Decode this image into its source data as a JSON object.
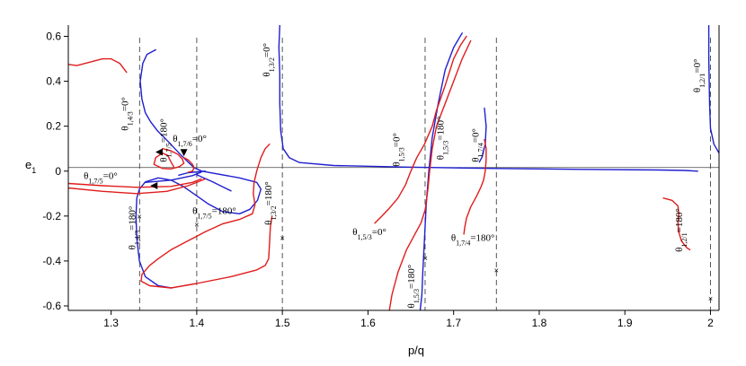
{
  "chart_data": {
    "type": "line",
    "xlabel": "p/q",
    "ylabel": "e",
    "ylabel_sub": "1",
    "xlim": [
      1.25,
      2.01
    ],
    "ylim": [
      -0.62,
      0.65
    ],
    "x_ticks": [
      "1.3",
      "1.4",
      "1.5",
      "1.6",
      "1.7",
      "1.8",
      "1.9",
      "2"
    ],
    "x_tick_values": [
      1.3,
      1.4,
      1.5,
      1.6,
      1.7,
      1.8,
      1.9,
      2.0
    ],
    "y_ticks": [
      "-0.6",
      "-0.4",
      "-0.2",
      "0",
      "0.2",
      "0.4",
      "0.6"
    ],
    "y_tick_values": [
      -0.6,
      -0.4,
      -0.2,
      0,
      0.2,
      0.4,
      0.6
    ],
    "reference_lines_x": [
      1.3333,
      1.4,
      1.5,
      1.6667,
      1.75,
      2.0
    ],
    "colors": {
      "blue": "#1f1fd0",
      "red": "#e01c1c",
      "ref": "#555555"
    },
    "series": [
      {
        "color": "blue",
        "points": [
          [
            1.352,
            0.54
          ],
          [
            1.342,
            0.52
          ],
          [
            1.337,
            0.48
          ],
          [
            1.334,
            0.4
          ],
          [
            1.336,
            0.32
          ],
          [
            1.34,
            0.26
          ],
          [
            1.346,
            0.22
          ],
          [
            1.354,
            0.18
          ],
          [
            1.362,
            0.15
          ],
          [
            1.372,
            0.11
          ],
          [
            1.382,
            0.07
          ],
          [
            1.39,
            0.04
          ],
          [
            1.397,
            0.015
          ],
          [
            1.406,
            0.0
          ],
          [
            1.45,
            -0.03
          ],
          [
            1.47,
            -0.05
          ],
          [
            1.475,
            -0.08
          ],
          [
            1.471,
            -0.13
          ],
          [
            1.462,
            -0.17
          ],
          [
            1.45,
            -0.19
          ],
          [
            1.43,
            -0.18
          ],
          [
            1.413,
            -0.145
          ],
          [
            1.4,
            -0.11
          ],
          [
            1.385,
            -0.07
          ],
          [
            1.37,
            -0.04
          ],
          [
            1.355,
            -0.03
          ],
          [
            1.34,
            -0.048
          ],
          [
            1.333,
            -0.08
          ],
          [
            1.33,
            -0.12
          ],
          [
            1.329,
            -0.2
          ],
          [
            1.33,
            -0.3
          ],
          [
            1.333,
            -0.4
          ],
          [
            1.34,
            -0.47
          ],
          [
            1.355,
            -0.51
          ],
          [
            1.37,
            -0.52
          ]
        ]
      },
      {
        "color": "blue",
        "points": [
          [
            1.34,
            -0.05
          ],
          [
            1.37,
            -0.04
          ],
          [
            1.395,
            -0.02
          ],
          [
            1.405,
            -0.005
          ]
        ]
      },
      {
        "color": "blue",
        "points": [
          [
            1.379,
            -0.018
          ],
          [
            1.39,
            -0.007
          ],
          [
            1.41,
            0.0
          ]
        ]
      },
      {
        "color": "blue",
        "points": [
          [
            1.4,
            -0.016
          ],
          [
            1.408,
            -0.03
          ],
          [
            1.417,
            -0.045
          ],
          [
            1.425,
            -0.06
          ],
          [
            1.433,
            -0.075
          ],
          [
            1.44,
            -0.088
          ]
        ]
      },
      {
        "color": "blue",
        "points": [
          [
            1.497,
            0.65
          ],
          [
            1.496,
            0.55
          ],
          [
            1.497,
            0.43
          ],
          [
            1.497,
            0.3
          ],
          [
            1.498,
            0.18
          ],
          [
            1.501,
            0.1
          ],
          [
            1.508,
            0.06
          ],
          [
            1.52,
            0.038
          ],
          [
            1.56,
            0.025
          ],
          [
            1.64,
            0.018
          ],
          [
            1.75,
            0.012
          ],
          [
            1.85,
            0.008
          ],
          [
            1.94,
            0.005
          ],
          [
            1.97,
            0.003
          ],
          [
            1.985,
            0.0
          ]
        ]
      },
      {
        "color": "blue",
        "points": [
          [
            1.998,
            0.65
          ],
          [
            1.998,
            0.5
          ],
          [
            1.999,
            0.3
          ],
          [
            2.0,
            0.19
          ],
          [
            2.004,
            0.12
          ],
          [
            2.01,
            0.08
          ]
        ]
      },
      {
        "color": "blue",
        "points": [
          [
            1.661,
            -0.62
          ],
          [
            1.663,
            -0.55
          ],
          [
            1.664,
            -0.45
          ],
          [
            1.666,
            -0.3
          ],
          [
            1.668,
            -0.15
          ],
          [
            1.671,
            0.0
          ],
          [
            1.675,
            0.15
          ],
          [
            1.682,
            0.3
          ],
          [
            1.69,
            0.45
          ],
          [
            1.7,
            0.55
          ],
          [
            1.71,
            0.615
          ]
        ]
      },
      {
        "color": "blue",
        "points": [
          [
            1.736,
            0.28
          ],
          [
            1.738,
            0.2
          ],
          [
            1.737,
            0.12
          ],
          [
            1.733,
            0.06
          ],
          [
            1.73,
            0.04
          ]
        ]
      },
      {
        "color": "red",
        "points": [
          [
            1.25,
            0.475
          ],
          [
            1.26,
            0.47
          ],
          [
            1.275,
            0.485
          ],
          [
            1.29,
            0.5
          ],
          [
            1.3,
            0.5
          ],
          [
            1.31,
            0.48
          ],
          [
            1.318,
            0.44
          ]
        ]
      },
      {
        "color": "red",
        "points": [
          [
            1.25,
            -0.055
          ],
          [
            1.29,
            -0.065
          ],
          [
            1.33,
            -0.072
          ],
          [
            1.37,
            -0.068
          ],
          [
            1.395,
            -0.05
          ],
          [
            1.405,
            -0.035
          ]
        ]
      },
      {
        "color": "red",
        "points": [
          [
            1.25,
            -0.075
          ],
          [
            1.29,
            -0.09
          ],
          [
            1.33,
            -0.1
          ],
          [
            1.365,
            -0.09
          ],
          [
            1.39,
            -0.065
          ],
          [
            1.41,
            -0.035
          ]
        ]
      },
      {
        "color": "red",
        "points": [
          [
            1.36,
            0.1
          ],
          [
            1.37,
            0.09
          ],
          [
            1.378,
            0.075
          ],
          [
            1.383,
            0.055
          ],
          [
            1.385,
            0.035
          ],
          [
            1.38,
            0.02
          ],
          [
            1.37,
            0.01
          ],
          [
            1.36,
            0.012
          ],
          [
            1.35,
            0.03
          ],
          [
            1.352,
            0.06
          ],
          [
            1.36,
            0.08
          ],
          [
            1.366,
            0.07
          ],
          [
            1.37,
            0.04
          ],
          [
            1.373,
            0.02
          ]
        ]
      },
      {
        "color": "red",
        "points": [
          [
            1.385,
            0.06
          ],
          [
            1.39,
            0.05
          ],
          [
            1.395,
            0.03
          ],
          [
            1.397,
            0.015
          ],
          [
            1.395,
            0.0
          ],
          [
            1.39,
            -0.005
          ]
        ]
      },
      {
        "color": "red",
        "points": [
          [
            1.485,
            0.12
          ],
          [
            1.48,
            0.1
          ],
          [
            1.475,
            0.06
          ],
          [
            1.47,
            0.0
          ],
          [
            1.467,
            -0.05
          ],
          [
            1.466,
            -0.1
          ],
          [
            1.468,
            -0.15
          ],
          [
            1.465,
            -0.19
          ],
          [
            1.45,
            -0.215
          ],
          [
            1.43,
            -0.235
          ],
          [
            1.41,
            -0.27
          ],
          [
            1.39,
            -0.31
          ],
          [
            1.37,
            -0.35
          ],
          [
            1.355,
            -0.39
          ],
          [
            1.345,
            -0.42
          ],
          [
            1.336,
            -0.46
          ],
          [
            1.335,
            -0.49
          ],
          [
            1.345,
            -0.51
          ],
          [
            1.37,
            -0.52
          ],
          [
            1.4,
            -0.5
          ],
          [
            1.44,
            -0.47
          ],
          [
            1.47,
            -0.44
          ],
          [
            1.48,
            -0.42
          ],
          [
            1.484,
            -0.39
          ],
          [
            1.485,
            -0.32
          ],
          [
            1.486,
            -0.25
          ],
          [
            1.488,
            -0.2
          ]
        ]
      },
      {
        "color": "red",
        "points": [
          [
            1.608,
            -0.232
          ],
          [
            1.615,
            -0.205
          ],
          [
            1.625,
            -0.165
          ],
          [
            1.635,
            -0.12
          ],
          [
            1.644,
            -0.06
          ],
          [
            1.65,
            0.0
          ],
          [
            1.657,
            0.06
          ],
          [
            1.666,
            0.12
          ],
          [
            1.675,
            0.2
          ],
          [
            1.68,
            0.27
          ],
          [
            1.69,
            0.38
          ],
          [
            1.7,
            0.5
          ],
          [
            1.708,
            0.56
          ],
          [
            1.715,
            0.6
          ]
        ]
      },
      {
        "color": "red",
        "points": [
          [
            1.625,
            -0.62
          ],
          [
            1.628,
            -0.55
          ],
          [
            1.635,
            -0.45
          ],
          [
            1.645,
            -0.35
          ],
          [
            1.652,
            -0.3
          ],
          [
            1.662,
            -0.23
          ],
          [
            1.667,
            -0.17
          ],
          [
            1.67,
            -0.08
          ],
          [
            1.672,
            0.0
          ],
          [
            1.675,
            0.1
          ],
          [
            1.68,
            0.2
          ],
          [
            1.69,
            0.3
          ],
          [
            1.7,
            0.4
          ],
          [
            1.71,
            0.5
          ],
          [
            1.72,
            0.58
          ]
        ]
      },
      {
        "color": "red",
        "points": [
          [
            1.712,
            -0.28
          ],
          [
            1.713,
            -0.25
          ],
          [
            1.715,
            -0.21
          ],
          [
            1.72,
            -0.16
          ],
          [
            1.727,
            -0.11
          ],
          [
            1.732,
            -0.07
          ],
          [
            1.735,
            -0.04
          ],
          [
            1.737,
            0.0
          ],
          [
            1.738,
            0.05
          ],
          [
            1.738,
            0.1
          ],
          [
            1.736,
            0.14
          ]
        ]
      },
      {
        "color": "red",
        "points": [
          [
            1.945,
            -0.12
          ],
          [
            1.955,
            -0.13
          ],
          [
            1.962,
            -0.155
          ],
          [
            1.963,
            -0.19
          ],
          [
            1.962,
            -0.23
          ],
          [
            1.963,
            -0.27
          ],
          [
            1.966,
            -0.31
          ],
          [
            1.972,
            -0.34
          ],
          [
            1.976,
            -0.35
          ]
        ]
      }
    ],
    "annotations": [
      {
        "theta": "θ",
        "sub": "1,4/3",
        "text": "=0°",
        "x": 1.32,
        "y": 0.18,
        "rotate": -90
      },
      {
        "theta": "θ",
        "sub": "1,7/5",
        "text": "=180°",
        "x": 1.365,
        "y": 0.04,
        "rotate": -90
      },
      {
        "theta": "θ",
        "sub": "1,7/6",
        "text": "=0°",
        "x": 1.372,
        "y": 0.13,
        "rotate": 0
      },
      {
        "theta": "θ",
        "sub": "1,7/5",
        "text": "=0°",
        "x": 1.268,
        "y": -0.035,
        "rotate": 0
      },
      {
        "theta": "θ",
        "sub": "1,4/3",
        "text": "=180°",
        "x": 1.328,
        "y": -0.35,
        "rotate": -90
      },
      {
        "theta": "θ",
        "sub": "1,7/5",
        "text": "=180°",
        "x": 1.395,
        "y": -0.19,
        "rotate": 0
      },
      {
        "theta": "θ",
        "sub": "1,3/2",
        "text": "=180°",
        "x": 1.487,
        "y": -0.24,
        "rotate": -90
      },
      {
        "theta": "θ",
        "sub": "1,3/2",
        "text": "=0°",
        "x": 1.485,
        "y": 0.42,
        "rotate": -90
      },
      {
        "theta": "θ",
        "sub": "1,5/3",
        "text": "=0°",
        "x": 1.637,
        "y": 0.02,
        "rotate": -90
      },
      {
        "theta": "θ",
        "sub": "1,5/3",
        "text": "=180°",
        "x": 1.688,
        "y": 0.05,
        "rotate": -90
      },
      {
        "theta": "θ",
        "sub": "1,7/4",
        "text": "=0°",
        "x": 1.729,
        "y": 0.04,
        "rotate": -90
      },
      {
        "theta": "θ",
        "sub": "1,5/3",
        "text": "=0°",
        "x": 1.582,
        "y": -0.285,
        "rotate": 0
      },
      {
        "theta": "θ",
        "sub": "1,5/3",
        "text": "=180°",
        "x": 1.654,
        "y": -0.61,
        "rotate": -90
      },
      {
        "theta": "θ",
        "sub": "1,7/4",
        "text": "=180°",
        "x": 1.697,
        "y": -0.31,
        "rotate": 0
      },
      {
        "theta": "θ",
        "sub": "1,2/1",
        "text": "=180°",
        "x": 1.967,
        "y": -0.36,
        "rotate": -90
      },
      {
        "theta": "θ",
        "sub": "1,2/1",
        "text": "=0°",
        "x": 1.988,
        "y": 0.35,
        "rotate": -90
      }
    ],
    "arrows": [
      {
        "x": 1.356,
        "y": 0.085,
        "dir": "left"
      },
      {
        "x": 1.385,
        "y": 0.082,
        "dir": "down"
      },
      {
        "x": 1.35,
        "y": -0.065,
        "dir": "left"
      }
    ],
    "markers": [
      {
        "symbol": "×",
        "x": 1.333,
        "y": -0.215
      },
      {
        "symbol": "×",
        "x": 1.4,
        "y": -0.25
      },
      {
        "symbol": "×",
        "x": 1.5,
        "y": -0.31
      },
      {
        "symbol": "×",
        "x": 1.667,
        "y": -0.4
      },
      {
        "symbol": "×",
        "x": 1.75,
        "y": -0.455
      },
      {
        "symbol": "×",
        "x": 2.0,
        "y": -0.58
      }
    ]
  }
}
